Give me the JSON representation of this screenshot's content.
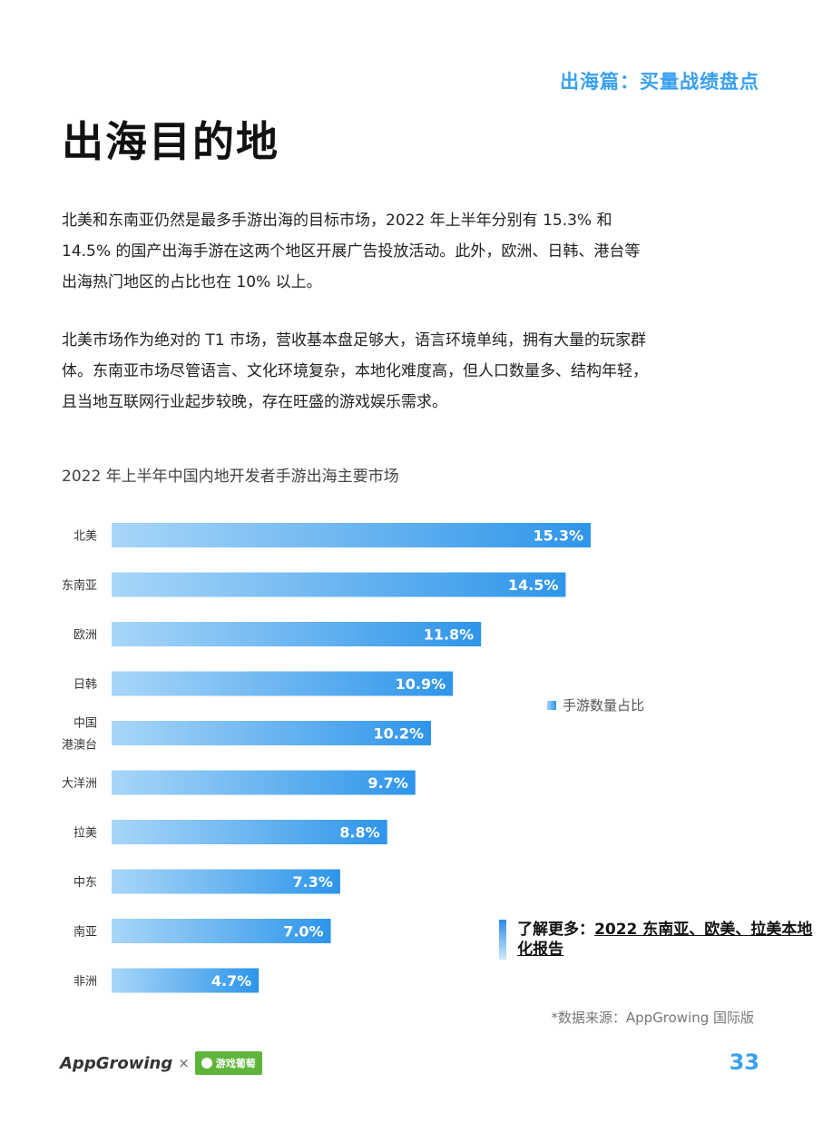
{
  "header": {
    "section_tag": "出海篇：买量战绩盘点",
    "title": "出海目的地"
  },
  "paragraphs": [
    "北美和东南亚仍然是最多手游出海的目标市场，2022 年上半年分别有 15.3% 和 14.5% 的国产出海手游在这两个地区开展广告投放活动。此外，欧洲、日韩、港台等出海热门地区的占比也在 10% 以上。",
    "北美市场作为绝对的 T1 市场，营收基本盘足够大，语言环境单纯，拥有大量的玩家群体。东南亚市场尽管语言、文化环境复杂，本地化难度高，但人口数量多、结构年轻，且当地互联网行业起步较晚，存在旺盛的游戏娱乐需求。"
  ],
  "chart_data": {
    "type": "bar",
    "orientation": "horizontal",
    "title": "2022 年上半年中国内地开发者手游出海主要市场",
    "categories": [
      "北美",
      "东南亚",
      "欧洲",
      "日韩",
      "中国\n港澳台",
      "大洋洲",
      "拉美",
      "中东",
      "南亚",
      "非洲"
    ],
    "series": [
      {
        "name": "手游数量占比",
        "values": [
          15.3,
          14.5,
          11.8,
          10.9,
          10.2,
          9.7,
          8.8,
          7.3,
          7.0,
          4.7
        ]
      }
    ],
    "value_labels": [
      "15.3%",
      "14.5%",
      "11.8%",
      "10.9%",
      "10.2%",
      "9.7%",
      "8.8%",
      "7.3%",
      "7.0%",
      "4.7%"
    ],
    "unit": "%",
    "legend_position": "right",
    "grid": false,
    "colors": {
      "bar_start": "#a8d6f8",
      "bar_end": "#2e95ea"
    }
  },
  "learn_more": {
    "prefix": "了解更多：",
    "link": "2022 东南亚、欧美、拉美本地化报告"
  },
  "source": "*数据来源：AppGrowing 国际版",
  "footer": {
    "logo_app": "AppGrowing",
    "logo_x": "×",
    "logo_partner": "游戏葡萄",
    "page_number": "33"
  },
  "colors": {
    "accent": "#3aa0f0"
  }
}
